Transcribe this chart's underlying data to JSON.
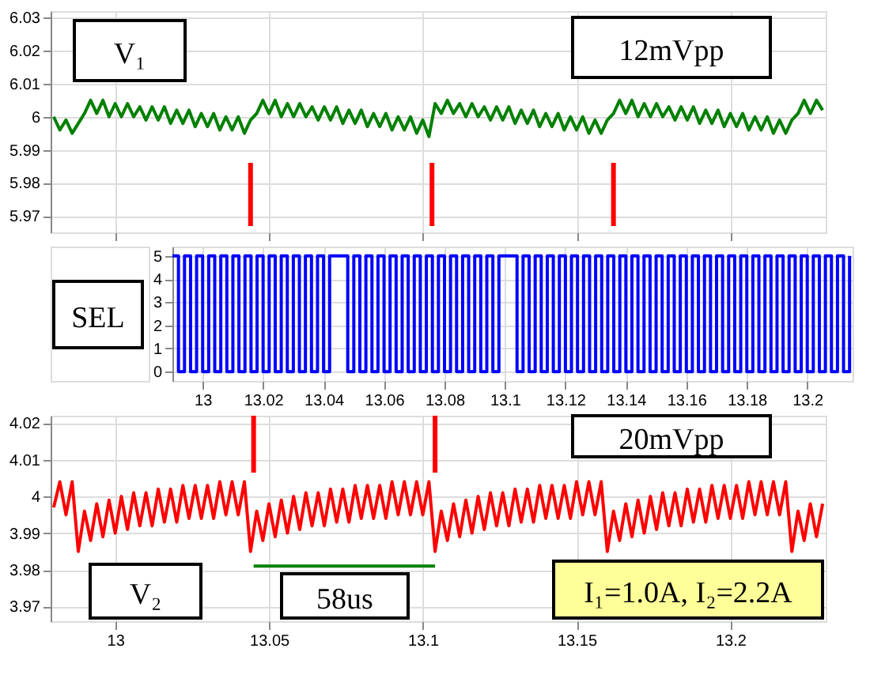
{
  "chart_data": [
    {
      "type": "line",
      "color": "#008000",
      "xlim": [
        12.979,
        13.231
      ],
      "xticks": [
        13,
        13.05,
        13.1,
        13.15,
        13.2
      ],
      "ylim": [
        5.965,
        6.032
      ],
      "yticks": [
        5.97,
        5.98,
        5.99,
        6,
        6.01,
        6.02,
        6.03
      ],
      "grid": true,
      "tick_labels": "y",
      "annotations": [
        "V₁",
        "12mVpp"
      ],
      "ref_lines": [
        {
          "axis": "x",
          "value": 13.044,
          "color": "#ff0000"
        },
        {
          "axis": "x",
          "value": 13.103,
          "color": "#ff0000"
        },
        {
          "axis": "x",
          "value": 13.162,
          "color": "#ff0000"
        }
      ],
      "x": [
        12.98,
        12.982,
        12.984,
        12.986,
        12.988,
        12.99,
        12.992,
        12.994,
        12.996,
        12.998,
        13,
        13.002,
        13.004,
        13.006,
        13.008,
        13.01,
        13.012,
        13.014,
        13.016,
        13.018,
        13.02,
        13.022,
        13.024,
        13.026,
        13.028,
        13.03,
        13.032,
        13.034,
        13.036,
        13.038,
        13.04,
        13.042,
        13.044,
        13.046,
        13.048,
        13.05,
        13.052,
        13.054,
        13.056,
        13.058,
        13.06,
        13.062,
        13.064,
        13.066,
        13.068,
        13.07,
        13.072,
        13.074,
        13.076,
        13.078,
        13.08,
        13.082,
        13.084,
        13.086,
        13.088,
        13.09,
        13.092,
        13.094,
        13.096,
        13.098,
        13.1,
        13.102,
        13.104,
        13.106,
        13.108,
        13.11,
        13.112,
        13.114,
        13.116,
        13.118,
        13.12,
        13.122,
        13.124,
        13.126,
        13.128,
        13.13,
        13.132,
        13.134,
        13.136,
        13.138,
        13.14,
        13.142,
        13.144,
        13.146,
        13.148,
        13.15,
        13.152,
        13.154,
        13.156,
        13.158,
        13.16,
        13.162,
        13.164,
        13.166,
        13.168,
        13.17,
        13.172,
        13.174,
        13.176,
        13.178,
        13.18,
        13.182,
        13.184,
        13.186,
        13.188,
        13.19,
        13.192,
        13.194,
        13.196,
        13.198,
        13.2,
        13.202,
        13.204,
        13.206,
        13.208,
        13.21,
        13.212,
        13.214,
        13.216,
        13.218,
        13.22,
        13.222,
        13.224,
        13.226,
        13.228,
        13.23
      ],
      "values": [
        6.0,
        5.996,
        5.999,
        5.995,
        5.998,
        6.001,
        6.005,
        6.001,
        6.005,
        6.0,
        6.004,
        6.0,
        6.004,
        6.0,
        6.003,
        5.999,
        6.003,
        5.999,
        6.003,
        5.998,
        6.002,
        5.998,
        6.002,
        5.997,
        6.001,
        5.997,
        6.001,
        5.996,
        6.0,
        5.996,
        6.0,
        5.995,
        5.999,
        6.001,
        6.005,
        6.001,
        6.005,
        6.0,
        6.004,
        6.0,
        6.004,
        6.0,
        6.003,
        5.999,
        6.003,
        5.999,
        6.003,
        5.998,
        6.002,
        5.998,
        6.002,
        5.997,
        6.001,
        5.997,
        6.001,
        5.996,
        6.0,
        5.996,
        6.0,
        5.995,
        5.999,
        5.994,
        6.004,
        6.001,
        6.005,
        6.001,
        6.004,
        6.0,
        6.004,
        6.0,
        6.003,
        5.999,
        6.003,
        5.999,
        6.003,
        5.998,
        6.002,
        5.998,
        6.002,
        5.997,
        6.001,
        5.997,
        6.001,
        5.996,
        6.0,
        5.996,
        6.0,
        5.995,
        5.999,
        5.995,
        5.999,
        6.001,
        6.005,
        6.001,
        6.005,
        6.0,
        6.004,
        6.0,
        6.004,
        6.0,
        6.003,
        5.999,
        6.003,
        5.999,
        6.003,
        5.998,
        6.002,
        5.998,
        6.002,
        5.997,
        6.001,
        5.997,
        6.001,
        5.996,
        6.0,
        5.996,
        6.0,
        5.995,
        5.999,
        5.995,
        5.999,
        6.001,
        6.005,
        6.001,
        6.005,
        6.002
      ]
    },
    {
      "type": "step",
      "color": "#0000ff",
      "xlim": [
        12.99,
        13.215
      ],
      "xticks": [
        13,
        13.02,
        13.04,
        13.06,
        13.08,
        13.1,
        13.12,
        13.14,
        13.16,
        13.18,
        13.2
      ],
      "ylim": [
        -0.4,
        5.4
      ],
      "yticks": [
        0,
        1,
        2,
        3,
        4,
        5
      ],
      "grid": true,
      "annotations": [
        "SEL"
      ],
      "x": [
        12.99,
        12.992,
        12.994,
        12.996,
        12.998,
        13,
        13.002,
        13.004,
        13.006,
        13.008,
        13.01,
        13.012,
        13.014,
        13.016,
        13.018,
        13.02,
        13.022,
        13.024,
        13.026,
        13.028,
        13.03,
        13.032,
        13.034,
        13.036,
        13.038,
        13.04,
        13.042,
        13.044,
        13.046,
        13.048,
        13.05,
        13.052,
        13.054,
        13.056,
        13.058,
        13.06,
        13.062,
        13.064,
        13.066,
        13.068,
        13.07,
        13.072,
        13.074,
        13.076,
        13.078,
        13.08,
        13.082,
        13.084,
        13.086,
        13.088,
        13.09,
        13.092,
        13.094,
        13.096,
        13.098,
        13.1,
        13.102,
        13.104,
        13.106,
        13.108,
        13.11,
        13.112,
        13.114,
        13.116,
        13.118,
        13.12,
        13.122,
        13.124,
        13.126,
        13.128,
        13.13,
        13.132,
        13.134,
        13.136,
        13.138,
        13.14,
        13.142,
        13.144,
        13.146,
        13.148,
        13.15,
        13.152,
        13.154,
        13.156,
        13.158,
        13.16,
        13.162,
        13.164,
        13.166,
        13.168,
        13.17,
        13.172,
        13.174,
        13.176,
        13.178,
        13.18,
        13.182,
        13.184,
        13.186,
        13.188,
        13.19,
        13.192,
        13.194,
        13.196,
        13.198,
        13.2,
        13.202,
        13.204,
        13.206,
        13.208,
        13.21,
        13.212,
        13.214
      ],
      "values": [
        5,
        0,
        5,
        0,
        5,
        0,
        5,
        0,
        5,
        0,
        5,
        0,
        5,
        0,
        5,
        0,
        5,
        0,
        5,
        0,
        5,
        0,
        5,
        0,
        5,
        0,
        5,
        5,
        5,
        0,
        5,
        0,
        5,
        0,
        5,
        0,
        5,
        0,
        5,
        0,
        5,
        0,
        5,
        0,
        5,
        0,
        5,
        0,
        5,
        0,
        5,
        0,
        5,
        0,
        5,
        5,
        5,
        0,
        5,
        0,
        5,
        0,
        5,
        0,
        5,
        0,
        5,
        0,
        5,
        0,
        5,
        0,
        5,
        0,
        5,
        0,
        5,
        0,
        5,
        0,
        5,
        0,
        5,
        0,
        5,
        0,
        5,
        0,
        5,
        0,
        5,
        0,
        5,
        0,
        5,
        0,
        5,
        0,
        5,
        0,
        5,
        0,
        5,
        0,
        5,
        0,
        5,
        0,
        5,
        0,
        5,
        0,
        5
      ]
    },
    {
      "type": "line",
      "xlim": [
        12.979,
        13.231
      ],
      "xticks": [
        13,
        13.05,
        13.1,
        13.15,
        13.2
      ],
      "ylim": [
        3.966,
        4.022
      ],
      "yticks": [
        3.97,
        3.98,
        3.99,
        4,
        4.01,
        4.02
      ],
      "grid": true,
      "annotations": [
        "20mVpp",
        "V₂",
        "I₁=1.0A, I₂=2.2A",
        "58us"
      ],
      "ref_lines": [
        {
          "axis": "x",
          "value": 13.045,
          "color": "#ff0000"
        },
        {
          "axis": "x",
          "value": 13.104,
          "color": "#ff0000"
        }
      ],
      "series": [
        {
          "color": "#ff0000",
          "x": [
            12.98,
            12.982,
            12.984,
            12.986,
            12.988,
            12.99,
            12.992,
            12.994,
            12.996,
            12.998,
            13,
            13.002,
            13.004,
            13.006,
            13.008,
            13.01,
            13.012,
            13.014,
            13.016,
            13.018,
            13.02,
            13.022,
            13.024,
            13.026,
            13.028,
            13.03,
            13.032,
            13.034,
            13.036,
            13.038,
            13.04,
            13.042,
            13.044,
            13.046,
            13.048,
            13.05,
            13.052,
            13.054,
            13.056,
            13.058,
            13.06,
            13.062,
            13.064,
            13.066,
            13.068,
            13.07,
            13.072,
            13.074,
            13.076,
            13.078,
            13.08,
            13.082,
            13.084,
            13.086,
            13.088,
            13.09,
            13.092,
            13.094,
            13.096,
            13.098,
            13.1,
            13.102,
            13.104,
            13.106,
            13.108,
            13.11,
            13.112,
            13.114,
            13.116,
            13.118,
            13.12,
            13.122,
            13.124,
            13.126,
            13.128,
            13.13,
            13.132,
            13.134,
            13.136,
            13.138,
            13.14,
            13.142,
            13.144,
            13.146,
            13.148,
            13.15,
            13.152,
            13.154,
            13.156,
            13.158,
            13.16,
            13.162,
            13.164,
            13.166,
            13.168,
            13.17,
            13.172,
            13.174,
            13.176,
            13.178,
            13.18,
            13.182,
            13.184,
            13.186,
            13.188,
            13.19,
            13.192,
            13.194,
            13.196,
            13.198,
            13.2,
            13.202,
            13.204,
            13.206,
            13.208,
            13.21,
            13.212,
            13.214,
            13.216,
            13.218,
            13.22,
            13.222,
            13.224,
            13.226,
            13.228,
            13.23
          ],
          "values": [
            3.997,
            4.004,
            3.995,
            4.004,
            3.985,
            3.996,
            3.988,
            3.998,
            3.989,
            3.999,
            3.99,
            4.0,
            3.991,
            4.001,
            3.992,
            4.001,
            3.992,
            4.002,
            3.993,
            4.002,
            3.993,
            4.003,
            3.994,
            4.003,
            3.994,
            4.003,
            3.994,
            4.004,
            3.995,
            4.004,
            3.995,
            4.004,
            3.985,
            3.996,
            3.988,
            3.998,
            3.989,
            3.999,
            3.99,
            4.0,
            3.991,
            4.001,
            3.992,
            4.001,
            3.992,
            4.002,
            3.993,
            4.002,
            3.993,
            4.003,
            3.994,
            4.003,
            3.994,
            4.003,
            3.994,
            4.004,
            3.995,
            4.004,
            3.995,
            4.004,
            3.995,
            4.004,
            3.985,
            3.996,
            3.988,
            3.998,
            3.989,
            3.999,
            3.99,
            4.0,
            3.991,
            4.001,
            3.992,
            4.001,
            3.992,
            4.002,
            3.993,
            4.002,
            3.993,
            4.003,
            3.994,
            4.003,
            3.994,
            4.003,
            3.994,
            4.004,
            3.995,
            4.004,
            3.995,
            4.004,
            3.985,
            3.996,
            3.988,
            3.998,
            3.989,
            3.999,
            3.99,
            4.0,
            3.991,
            4.001,
            3.992,
            4.001,
            3.992,
            4.002,
            3.993,
            4.002,
            3.993,
            4.003,
            3.994,
            4.003,
            3.994,
            4.003,
            3.994,
            4.004,
            3.995,
            4.004,
            3.995,
            4.004,
            3.995,
            4.004,
            3.985,
            3.996,
            3.988,
            3.998,
            3.989,
            3.998
          ]
        },
        {
          "color": "#008000",
          "x": [
            13.045,
            13.104
          ],
          "values": [
            3.981,
            3.981
          ]
        }
      ]
    }
  ]
}
